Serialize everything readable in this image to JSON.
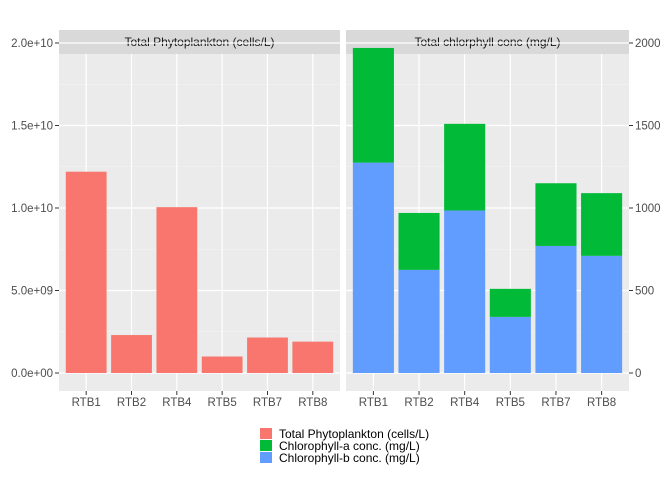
{
  "chart_data": [
    {
      "type": "bar",
      "title": "Total Phytoplankton (cells/L)",
      "categories": [
        "RTB1",
        "RTB2",
        "RTB4",
        "RTB5",
        "RTB7",
        "RTB8"
      ],
      "series": [
        {
          "name": "Total Phytoplankton (cells/L)",
          "values": [
            12200000000,
            2300000000,
            10050000000,
            1000000000,
            2150000000,
            1900000000
          ]
        }
      ],
      "ylim": [
        0,
        20000000000
      ],
      "yticks": [
        0,
        5000000000,
        10000000000,
        15000000000,
        20000000000
      ],
      "ytick_labels": [
        "0.0e+00",
        "5.0e+09",
        "1.0e+10",
        "1.5e+10",
        "2.0e+10"
      ],
      "axis_side": "left",
      "grid": true
    },
    {
      "type": "bar",
      "stacked": true,
      "title": "Total chlorphyll conc (mg/L)",
      "categories": [
        "RTB1",
        "RTB2",
        "RTB4",
        "RTB5",
        "RTB7",
        "RTB8"
      ],
      "series": [
        {
          "name": "Chlorophyll-b conc. (mg/L)",
          "values": [
            1275,
            625,
            985,
            340,
            770,
            710
          ]
        },
        {
          "name": "Chlorophyll-a conc. (mg/L)",
          "values": [
            695,
            345,
            525,
            170,
            380,
            380
          ]
        }
      ],
      "ylim": [
        0,
        2000
      ],
      "yticks": [
        0,
        500,
        1000,
        1500,
        2000
      ],
      "ytick_labels": [
        "0",
        "500",
        "1000",
        "1500",
        "2000"
      ],
      "axis_side": "right",
      "grid": true
    }
  ],
  "legend": {
    "placement": "bottom",
    "items": [
      {
        "label": "Total Phytoplankton (cells/L)",
        "color": "#F8766D"
      },
      {
        "label": "Chlorophyll-a conc. (mg/L)",
        "color": "#00BA38"
      },
      {
        "label": "Chlorophyll-b conc. (mg/L)",
        "color": "#619CFF"
      }
    ]
  },
  "colors": {
    "Total Phytoplankton (cells/L)": "#F8766D",
    "Chlorophyll-a conc. (mg/L)": "#00BA38",
    "Chlorophyll-b conc. (mg/L)": "#619CFF"
  }
}
